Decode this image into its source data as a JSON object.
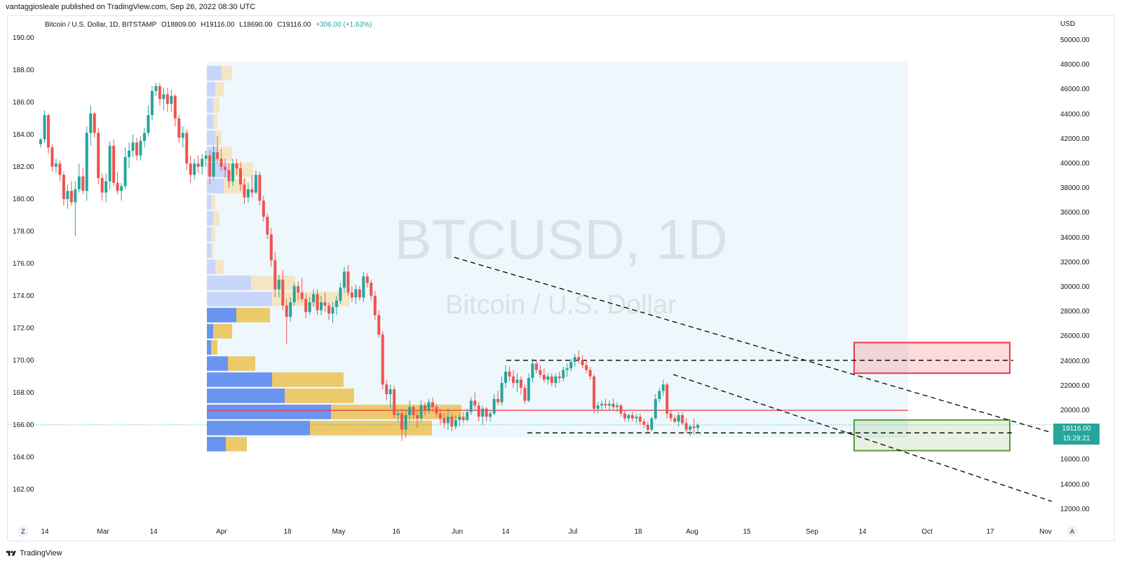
{
  "header": {
    "published_by": "vantaggiosleale published on TradingView.com, Sep 26, 2022 08:30 UTC"
  },
  "legend": {
    "symbol": "Bitcoin / U.S. Dollar, 1D, BITSTAMP",
    "o": "O18809.00",
    "h": "H19116.00",
    "l": "L18690.00",
    "c": "C19116.00",
    "change": "+306.00 (+1.63%)"
  },
  "watermark": {
    "line1": "BTCUSD, 1D",
    "line2": "Bitcoin / U.S. Dollar"
  },
  "right_axis_unit": "USD",
  "price_tag": {
    "price": "19116.00",
    "countdown": "15:29:21"
  },
  "brand": "TradingView",
  "buttons": {
    "zoom": "Z",
    "auto": "A"
  },
  "colors": {
    "up": "#26a69a",
    "down": "#ef5350",
    "vp_up_strong": "#6b93f0",
    "vp_down_strong": "#ecc96b",
    "vp_up_faint": "#c7d6fa",
    "vp_down_faint": "#f4e6c4",
    "poc": "#f23645",
    "range_bg": "#eef7fc",
    "resistance_box": "#f23645",
    "support_box": "#5b9c38"
  },
  "chart_data": {
    "type": "candlestick",
    "left_axis": {
      "ticks": [
        "190.00",
        "188.00",
        "186.00",
        "184.00",
        "182.00",
        "180.00",
        "178.00",
        "176.00",
        "174.00",
        "172.00",
        "170.00",
        "168.00",
        "166.00",
        "164.00",
        "162.00"
      ],
      "range": [
        161,
        191
      ]
    },
    "right_axis": {
      "unit": "USD",
      "ticks": [
        "50000.00",
        "48000.00",
        "46000.00",
        "44000.00",
        "42000.00",
        "40000.00",
        "38000.00",
        "36000.00",
        "34000.00",
        "32000.00",
        "30000.00",
        "28000.00",
        "26000.00",
        "24000.00",
        "22000.00",
        "20000.00",
        "18000.00",
        "16000.00",
        "14000.00",
        "12000.00"
      ]
    },
    "x_axis": {
      "ticks": [
        "14",
        "Mar",
        "14",
        "Apr",
        "18",
        "May",
        "16",
        "Jun",
        "14",
        "Jul",
        "18",
        "Aug",
        "15",
        "Sep",
        "14",
        "Oct",
        "17",
        "Nov"
      ]
    },
    "candles_left_axis": [
      [
        183.8,
        184.2,
        183.6,
        184.1
      ],
      [
        184.1,
        185.9,
        183.9,
        185.6
      ],
      [
        185.6,
        185.7,
        183.2,
        183.6
      ],
      [
        183.6,
        183.8,
        182.1,
        182.4
      ],
      [
        182.4,
        182.9,
        182.0,
        182.6
      ],
      [
        182.6,
        182.8,
        181.5,
        181.9
      ],
      [
        181.9,
        182.1,
        180.0,
        180.4
      ],
      [
        180.4,
        181.3,
        179.8,
        180.9
      ],
      [
        180.9,
        181.5,
        180.0,
        180.2
      ],
      [
        180.2,
        181.5,
        178.1,
        181.0
      ],
      [
        181.0,
        182.6,
        180.8,
        181.8
      ],
      [
        181.8,
        182.3,
        180.7,
        180.9
      ],
      [
        180.9,
        184.9,
        180.3,
        184.5
      ],
      [
        184.5,
        186.2,
        183.7,
        185.7
      ],
      [
        185.7,
        185.8,
        184.2,
        184.5
      ],
      [
        184.5,
        184.8,
        181.3,
        181.7
      ],
      [
        181.7,
        182.0,
        180.3,
        180.8
      ],
      [
        180.8,
        182.0,
        180.2,
        181.5
      ],
      [
        181.5,
        184.0,
        181.0,
        183.7
      ],
      [
        183.7,
        184.1,
        181.2,
        181.4
      ],
      [
        181.4,
        182.1,
        180.7,
        180.9
      ],
      [
        180.9,
        181.4,
        180.3,
        181.2
      ],
      [
        181.2,
        183.6,
        181.0,
        183.0
      ],
      [
        183.0,
        183.9,
        182.3,
        183.4
      ],
      [
        183.4,
        184.4,
        183.0,
        183.9
      ],
      [
        183.9,
        184.2,
        182.8,
        183.1
      ],
      [
        183.1,
        184.3,
        182.8,
        184.0
      ],
      [
        184.0,
        184.8,
        183.6,
        184.5
      ],
      [
        184.5,
        186.2,
        184.3,
        185.6
      ],
      [
        185.6,
        187.4,
        185.3,
        187.1
      ],
      [
        187.1,
        187.6,
        186.8,
        187.4
      ],
      [
        187.4,
        187.6,
        186.2,
        186.6
      ],
      [
        186.6,
        187.3,
        185.9,
        186.9
      ],
      [
        186.9,
        187.3,
        185.8,
        186.3
      ],
      [
        186.3,
        187.2,
        185.8,
        186.8
      ],
      [
        186.8,
        186.9,
        184.9,
        185.4
      ],
      [
        185.4,
        185.6,
        183.9,
        184.2
      ],
      [
        184.2,
        184.9,
        183.6,
        184.5
      ],
      [
        184.5,
        184.7,
        182.2,
        182.6
      ],
      [
        182.6,
        183.1,
        181.4,
        181.9
      ],
      [
        181.9,
        182.9,
        181.6,
        182.6
      ],
      [
        182.6,
        183.1,
        182.0,
        182.4
      ],
      [
        182.4,
        183.2,
        181.9,
        182.9
      ],
      [
        182.9,
        183.4,
        182.4,
        183.1
      ],
      [
        183.1,
        183.4,
        181.3,
        181.8
      ],
      [
        181.8,
        183.7,
        181.6,
        183.3
      ],
      [
        183.3,
        184.3,
        182.6,
        182.9
      ],
      [
        182.9,
        183.5,
        182.1,
        182.4
      ],
      [
        182.4,
        182.9,
        181.7,
        182.2
      ],
      [
        182.2,
        182.6,
        181.1,
        181.5
      ],
      [
        181.5,
        182.9,
        181.2,
        182.6
      ],
      [
        182.6,
        182.9,
        181.9,
        182.3
      ],
      [
        182.3,
        182.7,
        180.9,
        181.3
      ],
      [
        181.3,
        181.7,
        180.1,
        180.5
      ],
      [
        180.5,
        181.4,
        180.2,
        181.0
      ],
      [
        181.0,
        181.9,
        180.5,
        180.8
      ],
      [
        180.8,
        182.2,
        180.7,
        181.9
      ],
      [
        181.9,
        182.1,
        180.0,
        180.3
      ],
      [
        180.3,
        180.6,
        179.0,
        179.3
      ],
      [
        179.3,
        179.5,
        177.9,
        178.2
      ],
      [
        178.2,
        178.6,
        176.2,
        176.6
      ],
      [
        176.6,
        177.1,
        174.3,
        174.8
      ],
      [
        174.8,
        175.7,
        174.3,
        175.4
      ],
      [
        175.4,
        176.0,
        173.5,
        173.8
      ],
      [
        173.8,
        174.2,
        171.4,
        173.1
      ],
      [
        173.1,
        174.3,
        172.8,
        174.0
      ],
      [
        174.0,
        175.2,
        173.8,
        175.0
      ],
      [
        175.0,
        175.3,
        174.1,
        174.6
      ],
      [
        174.6,
        175.5,
        174.0,
        174.2
      ],
      [
        174.2,
        174.5,
        173.0,
        173.4
      ],
      [
        173.4,
        174.3,
        173.2,
        174.0
      ],
      [
        174.0,
        174.8,
        173.7,
        174.5
      ],
      [
        174.5,
        174.8,
        173.2,
        173.5
      ],
      [
        173.5,
        174.4,
        173.2,
        174.0
      ],
      [
        174.0,
        174.6,
        173.4,
        173.8
      ],
      [
        173.8,
        174.0,
        172.9,
        173.3
      ],
      [
        173.3,
        174.0,
        172.7,
        173.7
      ],
      [
        173.7,
        174.4,
        173.2,
        174.1
      ],
      [
        174.1,
        175.2,
        173.9,
        174.9
      ],
      [
        174.9,
        176.2,
        174.6,
        175.9
      ],
      [
        175.9,
        176.3,
        174.4,
        174.6
      ],
      [
        174.6,
        175.0,
        174.0,
        174.3
      ],
      [
        174.3,
        175.1,
        173.9,
        174.8
      ],
      [
        174.8,
        175.0,
        174.1,
        174.3
      ],
      [
        174.3,
        175.9,
        174.0,
        175.6
      ],
      [
        175.6,
        175.8,
        174.9,
        175.2
      ],
      [
        175.2,
        175.4,
        174.1,
        174.4
      ],
      [
        174.4,
        174.7,
        172.9,
        173.2
      ],
      [
        173.2,
        173.5,
        171.8,
        172.0
      ],
      [
        172.0,
        172.2,
        168.6,
        168.9
      ],
      [
        168.9,
        169.2,
        167.9,
        168.3
      ],
      [
        168.3,
        168.9,
        167.4,
        168.6
      ],
      [
        168.6,
        168.8,
        166.8,
        167.0
      ],
      [
        167.0,
        167.3,
        166.6,
        167.1
      ],
      [
        167.1,
        167.4,
        165.4,
        166.1
      ],
      [
        166.1,
        167.3,
        165.6,
        167.0
      ],
      [
        167.0,
        167.9,
        166.6,
        167.5
      ],
      [
        167.5,
        167.6,
        166.7,
        167.0
      ],
      [
        167.0,
        167.3,
        166.2,
        166.8
      ],
      [
        166.8,
        167.9,
        166.6,
        167.6
      ],
      [
        167.6,
        167.8,
        167.0,
        167.3
      ],
      [
        167.3,
        168.0,
        167.1,
        167.8
      ],
      [
        167.8,
        168.1,
        167.2,
        167.5
      ],
      [
        167.5,
        167.7,
        166.9,
        167.1
      ],
      [
        167.1,
        167.4,
        166.4,
        166.8
      ],
      [
        166.8,
        167.1,
        166.2,
        166.5
      ],
      [
        166.5,
        167.4,
        166.1,
        166.9
      ],
      [
        166.9,
        167.1,
        166.0,
        166.3
      ],
      [
        166.3,
        167.0,
        166.1,
        166.7
      ],
      [
        166.7,
        167.1,
        166.3,
        166.9
      ],
      [
        166.9,
        167.2,
        166.5,
        166.7
      ],
      [
        166.7,
        167.4,
        166.6,
        167.2
      ],
      [
        167.2,
        168.1,
        167.0,
        167.9
      ],
      [
        167.9,
        168.4,
        167.3,
        167.6
      ],
      [
        167.6,
        167.8,
        166.6,
        166.9
      ],
      [
        166.9,
        167.6,
        166.4,
        167.4
      ],
      [
        167.4,
        167.5,
        166.6,
        166.9
      ],
      [
        166.9,
        167.3,
        166.6,
        167.1
      ],
      [
        167.1,
        168.3,
        167.0,
        168.0
      ],
      [
        168.0,
        168.5,
        167.6,
        167.8
      ],
      [
        167.8,
        169.4,
        167.6,
        169.0
      ],
      [
        169.0,
        170.1,
        168.7,
        169.7
      ],
      [
        169.7,
        170.0,
        169.1,
        169.4
      ],
      [
        169.4,
        169.8,
        168.7,
        169.0
      ],
      [
        169.0,
        169.6,
        168.4,
        169.2
      ],
      [
        169.2,
        169.4,
        168.3,
        168.7
      ],
      [
        168.7,
        168.9,
        167.7,
        167.9
      ],
      [
        167.9,
        169.6,
        167.8,
        169.3
      ],
      [
        169.3,
        170.5,
        169.0,
        170.2
      ],
      [
        170.2,
        170.4,
        169.6,
        169.8
      ],
      [
        169.8,
        170.1,
        169.3,
        169.5
      ],
      [
        169.5,
        169.9,
        169.0,
        169.2
      ],
      [
        169.2,
        169.6,
        168.9,
        169.4
      ],
      [
        169.4,
        169.6,
        168.8,
        169.0
      ],
      [
        169.0,
        169.6,
        168.7,
        169.4
      ],
      [
        169.4,
        169.7,
        169.0,
        169.3
      ],
      [
        169.3,
        170.0,
        169.1,
        169.8
      ],
      [
        169.8,
        170.2,
        169.4,
        169.9
      ],
      [
        169.9,
        170.5,
        169.7,
        170.3
      ],
      [
        170.3,
        170.8,
        170.0,
        170.6
      ],
      [
        170.6,
        171.0,
        170.2,
        170.4
      ],
      [
        170.4,
        170.7,
        169.9,
        170.1
      ],
      [
        170.1,
        170.4,
        169.6,
        169.8
      ],
      [
        169.8,
        170.0,
        169.2,
        169.4
      ],
      [
        169.4,
        169.5,
        167.1,
        167.4
      ],
      [
        167.4,
        167.8,
        167.1,
        167.6
      ],
      [
        167.6,
        167.9,
        167.3,
        167.7
      ],
      [
        167.7,
        168.0,
        167.4,
        167.6
      ],
      [
        167.6,
        167.9,
        167.3,
        167.7
      ],
      [
        167.7,
        168.0,
        167.3,
        167.5
      ],
      [
        167.5,
        167.8,
        167.2,
        167.6
      ],
      [
        167.6,
        167.7,
        166.9,
        167.1
      ],
      [
        167.1,
        167.3,
        166.6,
        166.8
      ],
      [
        166.8,
        167.1,
        166.6,
        167.0
      ],
      [
        167.0,
        167.2,
        166.6,
        166.8
      ],
      [
        166.8,
        167.1,
        166.5,
        166.9
      ],
      [
        166.9,
        167.1,
        166.4,
        166.6
      ],
      [
        166.6,
        166.8,
        166.2,
        166.4
      ],
      [
        166.4,
        166.6,
        165.9,
        166.1
      ],
      [
        166.1,
        166.9,
        166.0,
        166.8
      ],
      [
        166.8,
        168.3,
        166.7,
        168.0
      ],
      [
        168.0,
        168.7,
        167.8,
        168.5
      ],
      [
        168.5,
        169.2,
        168.2,
        168.9
      ],
      [
        168.9,
        169.0,
        166.8,
        167.1
      ],
      [
        167.1,
        167.3,
        166.6,
        166.8
      ],
      [
        166.8,
        167.0,
        166.5,
        166.6
      ],
      [
        166.6,
        167.2,
        166.3,
        167.0
      ],
      [
        167.0,
        167.2,
        166.4,
        166.5
      ],
      [
        166.5,
        166.8,
        165.9,
        166.1
      ],
      [
        166.1,
        166.4,
        165.7,
        166.3
      ],
      [
        166.3,
        166.8,
        165.8,
        166.2
      ],
      [
        166.2,
        166.5,
        165.9,
        166.4
      ]
    ],
    "volume_profile": {
      "rows": [
        {
          "price": 188.2,
          "up": 0.07,
          "down": 0.05,
          "active": false
        },
        {
          "price": 187.2,
          "up": 0.04,
          "down": 0.04,
          "active": false
        },
        {
          "price": 186.2,
          "up": 0.03,
          "down": 0.03,
          "active": false
        },
        {
          "price": 185.2,
          "up": 0.03,
          "down": 0.02,
          "active": false
        },
        {
          "price": 184.2,
          "up": 0.04,
          "down": 0.03,
          "active": false
        },
        {
          "price": 183.2,
          "up": 0.05,
          "down": 0.07,
          "active": false
        },
        {
          "price": 182.2,
          "up": 0.1,
          "down": 0.12,
          "active": false
        },
        {
          "price": 181.2,
          "up": 0.08,
          "down": 0.11,
          "active": false
        },
        {
          "price": 180.2,
          "up": 0.02,
          "down": 0.02,
          "active": false
        },
        {
          "price": 179.2,
          "up": 0.03,
          "down": 0.03,
          "active": false
        },
        {
          "price": 178.2,
          "up": 0.02,
          "down": 0.02,
          "active": false
        },
        {
          "price": 177.2,
          "up": 0.02,
          "down": 0.01,
          "active": false
        },
        {
          "price": 176.2,
          "up": 0.04,
          "down": 0.04,
          "active": false
        },
        {
          "price": 175.2,
          "up": 0.21,
          "down": 0.21,
          "active": false
        },
        {
          "price": 174.2,
          "up": 0.31,
          "down": 0.37,
          "active": false
        },
        {
          "price": 173.2,
          "up": 0.14,
          "down": 0.16,
          "active": true
        },
        {
          "price": 172.2,
          "up": 0.03,
          "down": 0.09,
          "active": true
        },
        {
          "price": 171.2,
          "up": 0.02,
          "down": 0.03,
          "active": true
        },
        {
          "price": 170.2,
          "up": 0.1,
          "down": 0.13,
          "active": true
        },
        {
          "price": 169.2,
          "up": 0.31,
          "down": 0.34,
          "active": true
        },
        {
          "price": 168.2,
          "up": 0.37,
          "down": 0.33,
          "active": true
        },
        {
          "price": 167.2,
          "up": 0.59,
          "down": 0.62,
          "active": true
        },
        {
          "price": 166.2,
          "up": 0.49,
          "down": 0.58,
          "active": true
        },
        {
          "price": 165.2,
          "up": 0.09,
          "down": 0.1,
          "active": true
        }
      ],
      "poc_price": 167.3
    },
    "annotations": {
      "resistance_box": {
        "from_date": "Sep 14",
        "to_date": "Oct 21",
        "low": 169.6,
        "high": 171.5
      },
      "support_box": {
        "from_date": "Sep 14",
        "to_date": "Oct 21",
        "low": 164.8,
        "high": 166.7
      },
      "horizontal_resistance": 170.4,
      "horizontal_support": 165.9
    }
  }
}
